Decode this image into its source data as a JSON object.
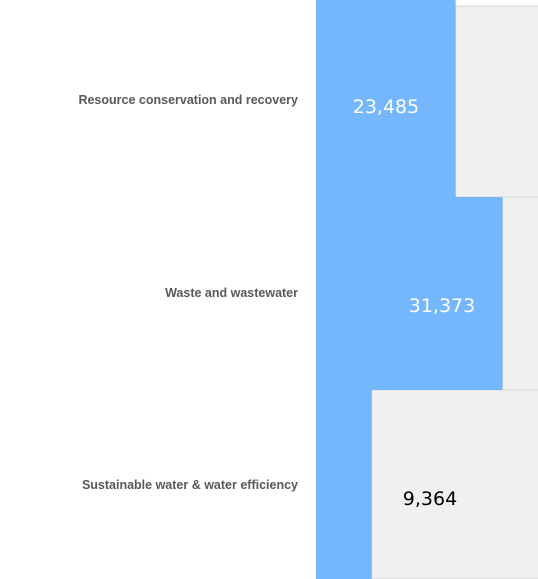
{
  "chart_data": {
    "type": "bar",
    "orientation": "horizontal",
    "categories": [
      "Resource conservation and recovery",
      "Waste and wastewater",
      "Sustainable water & water efficiency"
    ],
    "values": [
      23485,
      31373,
      9364
    ],
    "value_labels": [
      "23,485",
      "31,373",
      "9,364"
    ],
    "title": "",
    "xlabel": "",
    "ylabel": "",
    "grid": false,
    "legend": "none",
    "colors": {
      "bar": "#74b7ff",
      "background_bar": "#f0f0f0",
      "background_border": "#d9d9d9",
      "category_text": "#595959",
      "value_text_on_bar": "#ffffff",
      "value_text_on_background": "#000000"
    }
  }
}
